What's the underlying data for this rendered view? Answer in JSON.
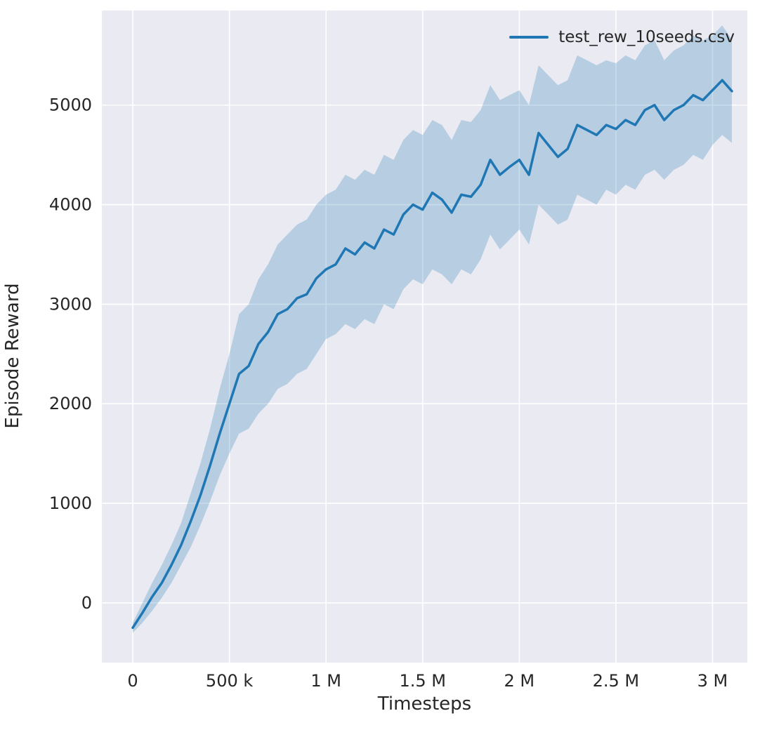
{
  "chart_data": {
    "type": "line",
    "title": "",
    "xlabel": "Timesteps",
    "ylabel": "Episode Reward",
    "legend_position": "upper right",
    "grid": true,
    "xlim": [
      -160000,
      3180000
    ],
    "ylim": [
      -600,
      5950
    ],
    "xticks": {
      "values": [
        0,
        500000,
        1000000,
        1500000,
        2000000,
        2500000,
        3000000
      ],
      "labels": [
        "0",
        "500 k",
        "1 M",
        "1.5 M",
        "2 M",
        "2.5 M",
        "3 M"
      ]
    },
    "yticks": {
      "values": [
        0,
        1000,
        2000,
        3000,
        4000,
        5000
      ],
      "labels": [
        "0",
        "1000",
        "2000",
        "3000",
        "4000",
        "5000"
      ]
    },
    "colors": {
      "line": "#1f77b4",
      "band": "#1f77b4",
      "band_alpha": 0.25,
      "axes_background": "#eaeaf2",
      "grid": "#ffffff",
      "text": "#262626"
    },
    "series": [
      {
        "name": "test_rew_10seeds.csv",
        "x": [
          0,
          50000,
          100000,
          150000,
          200000,
          250000,
          300000,
          350000,
          400000,
          450000,
          500000,
          550000,
          600000,
          650000,
          700000,
          750000,
          800000,
          850000,
          900000,
          950000,
          1000000,
          1050000,
          1100000,
          1150000,
          1200000,
          1250000,
          1300000,
          1350000,
          1400000,
          1450000,
          1500000,
          1550000,
          1600000,
          1650000,
          1700000,
          1750000,
          1800000,
          1850000,
          1900000,
          1950000,
          2000000,
          2050000,
          2100000,
          2150000,
          2200000,
          2250000,
          2300000,
          2350000,
          2400000,
          2450000,
          2500000,
          2550000,
          2600000,
          2650000,
          2700000,
          2750000,
          2800000,
          2850000,
          2900000,
          2950000,
          3000000,
          3050000,
          3100000
        ],
        "mean": [
          -250,
          -100,
          60,
          200,
          380,
          580,
          820,
          1080,
          1380,
          1700,
          2000,
          2300,
          2380,
          2600,
          2720,
          2900,
          2950,
          3060,
          3100,
          3260,
          3350,
          3400,
          3560,
          3500,
          3620,
          3560,
          3750,
          3700,
          3900,
          4000,
          3950,
          4120,
          4050,
          3920,
          4100,
          4080,
          4200,
          4450,
          4300,
          4380,
          4450,
          4300,
          4720,
          4600,
          4480,
          4560,
          4800,
          4750,
          4700,
          4800,
          4760,
          4850,
          4800,
          4950,
          5000,
          4850,
          4950,
          5000,
          5100,
          5050,
          5150,
          5250,
          5140
        ],
        "lower": [
          -300,
          -200,
          -80,
          50,
          200,
          380,
          560,
          780,
          1020,
          1280,
          1500,
          1700,
          1750,
          1900,
          2000,
          2150,
          2200,
          2300,
          2350,
          2500,
          2650,
          2700,
          2800,
          2750,
          2850,
          2800,
          3000,
          2950,
          3150,
          3250,
          3200,
          3350,
          3300,
          3200,
          3350,
          3300,
          3450,
          3700,
          3550,
          3650,
          3750,
          3600,
          4000,
          3900,
          3800,
          3850,
          4100,
          4050,
          4000,
          4150,
          4100,
          4200,
          4150,
          4300,
          4350,
          4250,
          4350,
          4400,
          4500,
          4450,
          4600,
          4700,
          4620
        ],
        "upper": [
          -200,
          0,
          200,
          380,
          580,
          800,
          1100,
          1400,
          1750,
          2150,
          2500,
          2900,
          3000,
          3250,
          3400,
          3600,
          3700,
          3800,
          3850,
          4000,
          4100,
          4150,
          4300,
          4250,
          4350,
          4300,
          4500,
          4450,
          4650,
          4750,
          4700,
          4850,
          4800,
          4650,
          4850,
          4830,
          4950,
          5200,
          5050,
          5100,
          5150,
          5000,
          5400,
          5300,
          5200,
          5250,
          5500,
          5450,
          5400,
          5450,
          5420,
          5500,
          5450,
          5600,
          5650,
          5450,
          5550,
          5600,
          5700,
          5650,
          5700,
          5800,
          5660
        ]
      }
    ]
  }
}
